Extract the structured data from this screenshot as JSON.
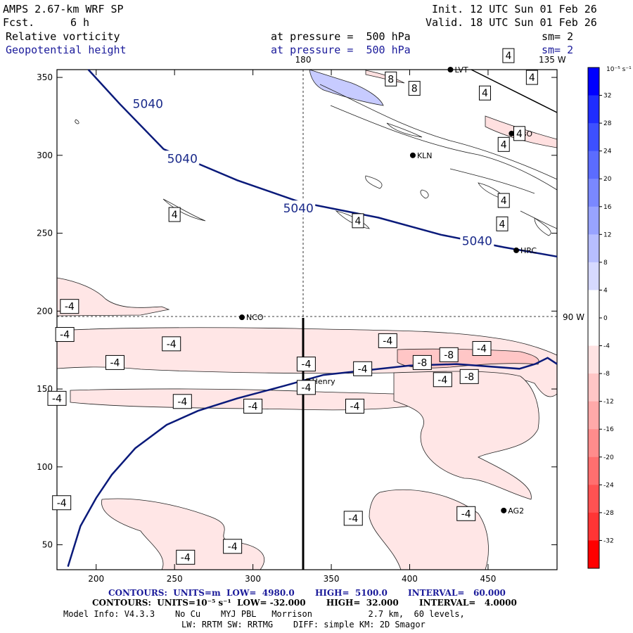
{
  "header": {
    "model": "AMPS 2.67-km WRF SP",
    "fcst_label": "Fcst.",
    "fcst_value": "6 h",
    "init": "Init. 12 UTC Sun 01 Feb 26",
    "valid": "Valid. 18 UTC Sun 01 Feb 26",
    "field1": "Relative vorticity",
    "field1_level": "at pressure =  500 hPa",
    "field1_sm": "sm= 2",
    "field2": "Geopotential height",
    "field2_level": "at pressure =  500 hPa",
    "field2_sm": "sm= 2"
  },
  "map_labels": {
    "lon_180": "180",
    "lon_135w": "135 W",
    "lon_90w": "90 W"
  },
  "stations": [
    {
      "name": "LVT",
      "x": 426,
      "y": 355
    },
    {
      "name": "RBO",
      "x": 465,
      "y": 314
    },
    {
      "name": "KLN",
      "x": 402,
      "y": 300
    },
    {
      "name": "HRC",
      "x": 468,
      "y": 239
    },
    {
      "name": "NCO",
      "x": 293,
      "y": 196
    },
    {
      "name": "Henry",
      "x": 335,
      "y": 155
    },
    {
      "name": "AG2",
      "x": 460,
      "y": 72
    }
  ],
  "chart_data": {
    "type": "contour",
    "xlim": [
      175,
      494
    ],
    "ylim": [
      34,
      355
    ],
    "x_ticks": [
      200,
      250,
      300,
      350,
      400,
      450
    ],
    "y_ticks": [
      50,
      100,
      150,
      200,
      250,
      300,
      350
    ],
    "geopotential_height_contour": {
      "level": "5040",
      "label": "5040",
      "labels_at": [
        [
          255,
          298
        ],
        [
          233,
          333
        ],
        [
          329,
          266
        ],
        [
          443,
          245
        ]
      ],
      "path_north": [
        [
          195,
          355
        ],
        [
          215,
          333
        ],
        [
          243,
          304
        ],
        [
          290,
          284
        ],
        [
          330,
          270
        ],
        [
          380,
          260
        ],
        [
          420,
          249
        ],
        [
          460,
          241
        ],
        [
          494,
          235
        ]
      ],
      "path_south": [
        [
          182,
          36
        ],
        [
          190,
          62
        ],
        [
          200,
          80
        ],
        [
          210,
          95
        ],
        [
          225,
          112
        ],
        [
          245,
          127
        ],
        [
          265,
          136
        ],
        [
          290,
          144
        ],
        [
          320,
          152
        ],
        [
          345,
          159
        ],
        [
          400,
          165
        ],
        [
          430,
          166
        ],
        [
          470,
          163
        ],
        [
          480,
          166
        ],
        [
          488,
          170
        ],
        [
          494,
          166
        ]
      ]
    },
    "vorticity_labels": {
      "positive": [
        {
          "t": "4",
          "x": 250,
          "y": 262
        },
        {
          "t": "4",
          "x": 367,
          "y": 258
        },
        {
          "t": "4",
          "x": 460,
          "y": 307
        },
        {
          "t": "4",
          "x": 448,
          "y": 340
        },
        {
          "t": "4",
          "x": 459,
          "y": 256
        },
        {
          "t": "4",
          "x": 460,
          "y": 271
        },
        {
          "t": "4",
          "x": 478,
          "y": 350
        },
        {
          "t": "4",
          "x": 463,
          "y": 364
        },
        {
          "t": "4",
          "x": 470,
          "y": 314
        },
        {
          "t": "8",
          "x": 388,
          "y": 349
        },
        {
          "t": "8",
          "x": 403,
          "y": 343
        }
      ],
      "negative": [
        {
          "t": "-4",
          "x": 183,
          "y": 203
        },
        {
          "t": "-4",
          "x": 180,
          "y": 185
        },
        {
          "t": "-4",
          "x": 248,
          "y": 179
        },
        {
          "t": "-4",
          "x": 212,
          "y": 167
        },
        {
          "t": "-4",
          "x": 175,
          "y": 144
        },
        {
          "t": "-4",
          "x": 255,
          "y": 142
        },
        {
          "t": "-4",
          "x": 300,
          "y": 139
        },
        {
          "t": "-4",
          "x": 334,
          "y": 166
        },
        {
          "t": "-4",
          "x": 334,
          "y": 151
        },
        {
          "t": "-4",
          "x": 370,
          "y": 163
        },
        {
          "t": "-4",
          "x": 365,
          "y": 139
        },
        {
          "t": "-4",
          "x": 386,
          "y": 181
        },
        {
          "t": "-4",
          "x": 421,
          "y": 156
        },
        {
          "t": "-4",
          "x": 446,
          "y": 176
        },
        {
          "t": "-4",
          "x": 178,
          "y": 77
        },
        {
          "t": "-4",
          "x": 287,
          "y": 49
        },
        {
          "t": "-4",
          "x": 257,
          "y": 42
        },
        {
          "t": "-4",
          "x": 364,
          "y": 67
        },
        {
          "t": "-4",
          "x": 436,
          "y": 70
        },
        {
          "t": "-8",
          "x": 425,
          "y": 172
        },
        {
          "t": "-8",
          "x": 408,
          "y": 167
        },
        {
          "t": "-8",
          "x": 438,
          "y": 158
        }
      ]
    },
    "colorbar": {
      "unit": "10⁻⁵ s⁻¹",
      "levels": [
        36,
        32,
        28,
        24,
        20,
        16,
        12,
        8,
        4,
        0,
        -4,
        -8,
        -12,
        -16,
        -20,
        -24,
        -28,
        -32,
        -36
      ],
      "tick_labels": [
        "32",
        "28",
        "24",
        "20",
        "16",
        "12",
        "8",
        "4",
        "0",
        "-4",
        "-8",
        "-12",
        "-16",
        "-20",
        "-24",
        "-28",
        "-32"
      ],
      "colors": [
        "#0000ff",
        "#1f2dff",
        "#3d50ff",
        "#5b6cff",
        "#7a88ff",
        "#98a3ff",
        "#b7beff",
        "#d6d9ff",
        "#ffffff",
        "#ffffff",
        "#ffe3e3",
        "#ffc6c6",
        "#ffa9a9",
        "#ff8c8c",
        "#ff6f6f",
        "#ff5252",
        "#ff3535",
        "#ff0000"
      ]
    }
  },
  "footer": {
    "line1": "CONTOURS:  UNITS=m  LOW=  4980.0       HIGH=  5100.0       INTERVAL=   60.000",
    "line2": "CONTOURS:  UNITS=10⁻⁵ s⁻¹  LOW= -32.000       HIGH=  32.000       INTERVAL=   4.0000",
    "line3": "Model Info: V4.3.3    No Cu    MYJ PBL   Morrison           2.7 km,  60 levels,",
    "line4": "LW: RRTM SW: RRTMG    DIFF: simple KM: 2D Smagor"
  }
}
